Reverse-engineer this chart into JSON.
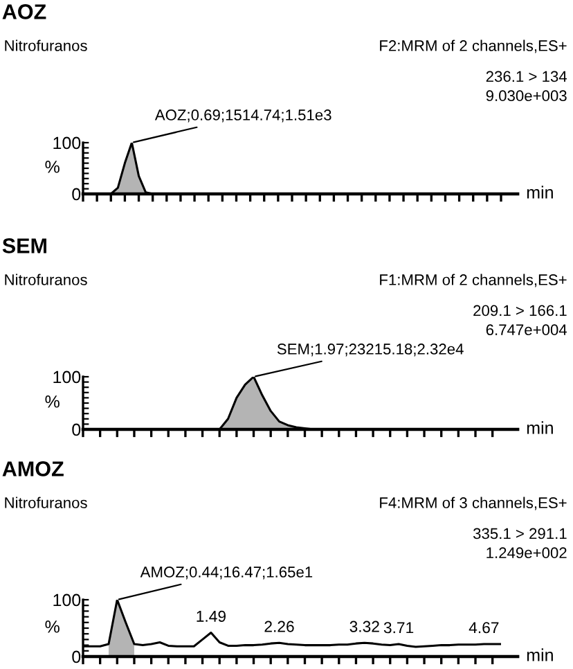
{
  "chart_data": [
    {
      "type": "line",
      "title": "AOZ",
      "subtitle": "Nitrofuranos",
      "xlabel": "min",
      "ylabel": "%",
      "annotations": [
        "F2:MRM of 2 channels,ES+",
        "236.1 > 134",
        "9.030e+003"
      ],
      "categories": [
        null,
        null,
        null,
        null,
        null,
        null,
        null,
        null,
        null,
        null,
        null,
        null,
        null,
        null,
        null,
        null,
        null,
        null,
        null,
        null,
        null,
        null,
        null,
        null,
        null,
        null,
        null,
        null,
        null,
        null,
        null,
        null,
        null,
        null,
        null,
        null,
        null,
        null,
        null,
        null,
        null,
        null,
        null,
        null,
        null,
        null,
        null,
        null,
        null,
        null,
        null,
        null,
        null,
        null,
        null,
        null,
        null,
        null,
        null,
        null,
        null
      ],
      "series": [
        {
          "color": "#000000",
          "values": [
            0,
            0,
            0,
            0,
            0,
            12,
            60,
            100,
            35,
            3,
            0,
            0,
            0,
            0,
            0,
            0,
            0,
            0,
            0,
            0,
            0,
            0,
            0,
            0,
            0,
            0,
            0,
            0,
            0,
            0,
            0,
            0,
            0,
            0,
            0,
            0,
            0,
            0,
            0,
            0,
            0,
            0,
            0,
            0,
            0,
            0,
            0,
            0,
            0,
            0,
            0,
            0,
            0,
            0,
            0,
            0,
            0,
            0,
            0,
            0,
            0
          ],
          "value_labels": [
            null,
            null,
            null,
            null,
            null,
            null,
            null,
            "AOZ;0.69;1514.74;1.51e3",
            null,
            null,
            null,
            null,
            null,
            null,
            null,
            null,
            null,
            null,
            null,
            null,
            null,
            null,
            null,
            null,
            null,
            null,
            null,
            null,
            null,
            null,
            null,
            null,
            null,
            null,
            null,
            null,
            null,
            null,
            null,
            null,
            null,
            null,
            null,
            null,
            null,
            null,
            null,
            null,
            null,
            null,
            null,
            null,
            null,
            null,
            null,
            null,
            null,
            null,
            null,
            null,
            null
          ]
        },
        {
          "type": "area",
          "color": "#b4b4b4",
          "values": [
            null,
            null,
            null,
            null,
            0,
            12,
            60,
            100,
            35,
            3,
            0,
            null,
            null,
            null,
            null,
            null,
            null,
            null,
            null,
            null,
            null,
            null,
            null,
            null,
            null,
            null,
            null,
            null,
            null,
            null,
            null,
            null,
            null,
            null,
            null,
            null,
            null,
            null,
            null,
            null,
            null,
            null,
            null,
            null,
            null,
            null,
            null,
            null,
            null,
            null,
            null,
            null,
            null,
            null,
            null,
            null,
            null,
            null,
            null,
            null,
            null
          ]
        }
      ],
      "ylim": [
        0,
        100
      ],
      "yticks": [
        0,
        {
          "value": 10,
          "label": null
        },
        {
          "value": 20,
          "label": null
        },
        {
          "value": 30,
          "label": null
        },
        {
          "value": 40,
          "label": null
        },
        {
          "value": 50,
          "label": null
        },
        {
          "value": 60,
          "label": null
        },
        {
          "value": 70,
          "label": null
        },
        {
          "value": 80,
          "label": null
        },
        {
          "value": 90,
          "label": null
        },
        100
      ],
      "tick_labels": "y"
    },
    {
      "type": "line",
      "title": "SEM",
      "subtitle": "Nitrofuranos",
      "xlabel": "min",
      "ylabel": "%",
      "annotations": [
        "F1:MRM of 2 channels,ES+",
        "209.1 > 166.1",
        "6.747e+004"
      ],
      "categories": [
        null,
        null,
        null,
        null,
        null,
        null,
        null,
        null,
        null,
        null,
        null,
        null,
        null,
        null,
        null,
        null,
        null,
        null,
        null,
        null,
        null,
        null,
        null,
        null,
        null,
        null,
        null,
        null,
        null,
        null,
        null,
        null,
        null,
        null,
        null,
        null,
        null,
        null,
        null,
        null,
        null,
        null,
        null,
        null,
        null,
        null,
        null,
        null,
        null,
        null
      ],
      "series": [
        {
          "color": "#000000",
          "values": [
            0,
            0,
            0,
            0,
            0,
            0,
            0,
            0,
            0,
            0,
            0,
            0,
            0,
            0,
            0,
            0,
            0,
            20,
            60,
            85,
            100,
            65,
            35,
            15,
            8,
            4,
            2,
            0,
            0,
            0,
            0,
            0,
            0,
            0,
            0,
            0,
            0,
            0,
            0,
            0,
            0,
            0,
            0,
            0,
            0,
            0,
            0,
            0,
            0,
            0
          ],
          "value_labels": [
            null,
            null,
            null,
            null,
            null,
            null,
            null,
            null,
            null,
            null,
            null,
            null,
            null,
            null,
            null,
            null,
            null,
            null,
            null,
            null,
            "SEM;1.97;23215.18;2.32e4",
            null,
            null,
            null,
            null,
            null,
            null,
            null,
            null,
            null,
            null,
            null,
            null,
            null,
            null,
            null,
            null,
            null,
            null,
            null,
            null,
            null,
            null,
            null,
            null,
            null,
            null,
            null,
            null,
            null
          ]
        },
        {
          "type": "area",
          "color": "#b4b4b4",
          "values": [
            null,
            null,
            null,
            null,
            null,
            null,
            null,
            null,
            null,
            null,
            null,
            null,
            null,
            null,
            null,
            null,
            0,
            20,
            60,
            85,
            100,
            65,
            35,
            15,
            8,
            4,
            2,
            0,
            null,
            null,
            null,
            null,
            null,
            null,
            null,
            null,
            null,
            null,
            null,
            null,
            null,
            null,
            null,
            null,
            null,
            null,
            null,
            null,
            null,
            null
          ]
        }
      ],
      "ylim": [
        0,
        100
      ],
      "yticks": [
        0,
        {
          "value": 10,
          "label": null
        },
        {
          "value": 20,
          "label": null
        },
        {
          "value": 30,
          "label": null
        },
        {
          "value": 40,
          "label": null
        },
        {
          "value": 50,
          "label": null
        },
        {
          "value": 60,
          "label": null
        },
        {
          "value": 70,
          "label": null
        },
        {
          "value": 80,
          "label": null
        },
        {
          "value": 90,
          "label": null
        },
        100
      ],
      "tick_labels": "y"
    },
    {
      "type": "line",
      "title": "AMOZ",
      "subtitle": "Nitrofuranos",
      "xlabel": "min",
      "ylabel": "%",
      "annotations": [
        "F4:MRM of 3 channels,ES+",
        "335.1 > 291.1",
        "1.249e+002",
        {
          "text": "1.49",
          "y": 42
        },
        {
          "text": "2.26",
          "y": 24
        },
        {
          "text": "3.32",
          "y": 24
        },
        {
          "text": "3.71",
          "y": 22
        },
        {
          "text": "4.67",
          "y": 22
        }
      ],
      "categories": [
        null,
        null,
        null,
        null,
        null,
        null,
        null,
        null,
        null,
        null,
        null,
        null,
        null,
        null,
        null,
        null,
        null,
        null,
        null,
        null,
        null,
        null,
        null,
        null,
        null,
        null,
        null,
        null,
        null,
        null,
        null,
        null,
        null,
        null,
        null,
        null,
        null,
        null,
        null,
        null,
        null,
        null,
        null,
        null,
        null,
        null,
        null,
        null,
        null,
        null
      ],
      "series": [
        {
          "color": "#000000",
          "values": [
            18,
            18,
            18,
            22,
            100,
            60,
            22,
            20,
            22,
            25,
            19,
            18,
            18,
            18,
            30,
            42,
            25,
            19,
            19,
            20,
            20,
            21,
            23,
            24,
            22,
            21,
            20,
            20,
            20,
            20,
            21,
            21,
            23,
            24,
            23,
            21,
            20,
            22,
            19,
            17,
            18,
            19,
            20,
            20,
            21,
            21,
            21,
            22,
            22,
            22
          ],
          "value_labels": [
            null,
            null,
            null,
            null,
            "AMOZ;0.44;16.47;1.65e1",
            null,
            null,
            null,
            null,
            null,
            null,
            null,
            null,
            null,
            null,
            null,
            null,
            null,
            null,
            null,
            null,
            null,
            null,
            null,
            null,
            null,
            null,
            null,
            null,
            null,
            null,
            null,
            null,
            null,
            null,
            null,
            null,
            null,
            null,
            null,
            null,
            null,
            null,
            null,
            null,
            null,
            null,
            null,
            null,
            null
          ]
        },
        {
          "type": "area",
          "color": "#b4b4b4",
          "values": [
            null,
            null,
            null,
            22,
            100,
            60,
            22,
            null,
            null,
            null,
            null,
            null,
            null,
            null,
            null,
            null,
            null,
            null,
            null,
            null,
            null,
            null,
            null,
            null,
            null,
            null,
            null,
            null,
            null,
            null,
            null,
            null,
            null,
            null,
            null,
            null,
            null,
            null,
            null,
            null,
            null,
            null,
            null,
            null,
            null,
            null,
            null,
            null,
            null,
            null
          ]
        }
      ],
      "ylim": [
        0,
        100
      ],
      "yticks": [
        0,
        {
          "value": 10,
          "label": null
        },
        {
          "value": 20,
          "label": null
        },
        {
          "value": 30,
          "label": null
        },
        {
          "value": 40,
          "label": null
        },
        {
          "value": 50,
          "label": null
        },
        {
          "value": 60,
          "label": null
        },
        {
          "value": 70,
          "label": null
        },
        {
          "value": 80,
          "label": null
        },
        {
          "value": 90,
          "label": null
        },
        100
      ],
      "tick_labels": "y"
    }
  ]
}
